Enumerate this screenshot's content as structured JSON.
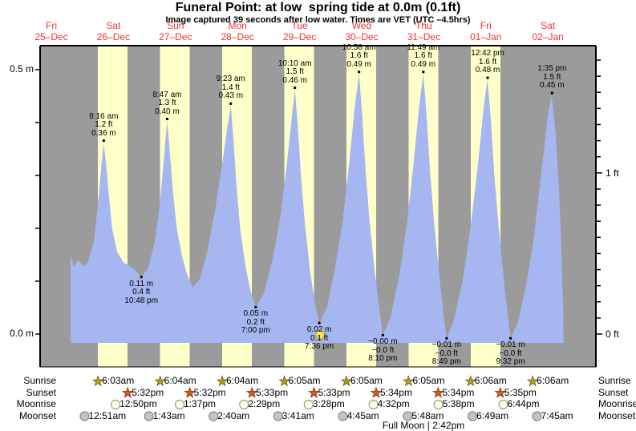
{
  "title": "Funeral Point: at low  spring tide at 0.0m (0.1ft)",
  "subtitle": "Image captured 39 seconds after low water. Times are VET (UTC –4.5hrs)",
  "footnote": "Full Moon | 2:42pm",
  "colors": {
    "day_band": "#ffffc9",
    "night_band": "#9b9b9b",
    "water": "#a5b6f1",
    "frame": "#000000",
    "day_label_red": "#f93030",
    "annotation_text": "#000000",
    "sunrise_star_fill": "#b09f25",
    "sunrise_star_stroke": "#776b10",
    "sunset_star_fill": "#d95e1f",
    "sunset_star_stroke": "#93330a",
    "moonrise_circle_fill": "#ffffd9",
    "moonrise_circle_stroke": "#9a9a9a",
    "moonset_circle_fill": "#c4c4bb",
    "moonset_circle_stroke": "#8a8a8a",
    "full_moon_marker_fill": "#f3e45c",
    "full_moon_marker_stroke": "#b0a020"
  },
  "chart_data": {
    "type": "area",
    "title": "Funeral Point: at low  spring tide at 0.0m (0.1ft)",
    "days": [
      {
        "weekday": "Fri",
        "date": "25–Dec"
      },
      {
        "weekday": "Sat",
        "date": "26–Dec"
      },
      {
        "weekday": "Sun",
        "date": "27–Dec"
      },
      {
        "weekday": "Mon",
        "date": "28–Dec"
      },
      {
        "weekday": "Tue",
        "date": "29–Dec"
      },
      {
        "weekday": "Wed",
        "date": "30–Dec"
      },
      {
        "weekday": "Thu",
        "date": "31–Dec"
      },
      {
        "weekday": "Fri",
        "date": "01–Jan"
      },
      {
        "weekday": "Sat",
        "date": "02–Jan"
      }
    ],
    "y_axis_left": {
      "unit": "m",
      "min": 0.0,
      "max": 0.5,
      "tick_step": 0.1,
      "labels": [
        {
          "value": 0.5,
          "text": "0.5 m"
        },
        {
          "value": 0.0,
          "text": "0.0 m"
        }
      ]
    },
    "y_axis_right": {
      "unit": "ft",
      "tick_step": 0.1,
      "tick_max": 1.7,
      "labels": [
        {
          "value": 1,
          "text": "1 ft"
        },
        {
          "value": 0,
          "text": "0 ft"
        }
      ]
    },
    "high_tides": [
      {
        "day": 1,
        "time": "8:16 am",
        "height_m": 0.362,
        "lines": [
          "8:16 am",
          "1.2 ft",
          "0.36 m"
        ]
      },
      {
        "day": 2,
        "time": "8:47 am",
        "height_m": 0.403,
        "lines": [
          "8:47 am",
          "1.3 ft",
          "0.40 m"
        ]
      },
      {
        "day": 3,
        "time": "9:23 am",
        "height_m": 0.432,
        "lines": [
          "9:23 am",
          "1.4 ft",
          "0.43 m"
        ]
      },
      {
        "day": 4,
        "time": "10:10 am",
        "height_m": 0.462,
        "lines": [
          "10:10 am",
          "1.5 ft",
          "0.46 m"
        ]
      },
      {
        "day": 5,
        "time": "10:58 am",
        "height_m": 0.492,
        "lines": [
          "10:58 am",
          "1.6 ft",
          "0.49 m"
        ]
      },
      {
        "day": 6,
        "time": "11:49 am",
        "height_m": 0.492,
        "lines": [
          "11:49 am",
          "1.6 ft",
          "0.49 m"
        ]
      },
      {
        "day": 7,
        "time": "12:42 pm",
        "height_m": 0.481,
        "lines": [
          "12:42 pm",
          "1.6 ft",
          "0.48 m"
        ]
      },
      {
        "day": 8,
        "time": "1:35 pm",
        "height_m": 0.452,
        "lines": [
          "1:35 pm",
          "1.5 ft",
          "0.45 m"
        ]
      }
    ],
    "low_tides": [
      {
        "day": 1,
        "time": "10:48 pm",
        "height_m": 0.108,
        "lines": [
          "0.11 m",
          "0.4 ft",
          "10:48 pm"
        ]
      },
      {
        "day": 3,
        "time": "7:00 pm",
        "height_m": 0.051,
        "lines": [
          "0.05 m",
          "0.2 ft",
          "7:00 pm"
        ]
      },
      {
        "day": 4,
        "time": "7:36 pm",
        "height_m": 0.021,
        "lines": [
          "0.02 m",
          "0.1 ft",
          "7:36 pm"
        ]
      },
      {
        "day": 5,
        "time": "8:10 pm",
        "height_m": -0.002,
        "lines": [
          "−0.00 m",
          "−0.0 ft",
          "8:10 pm"
        ]
      },
      {
        "day": 6,
        "time": "8:49 pm",
        "height_m": -0.008,
        "lines": [
          "−0.01 m",
          "−0.0 ft",
          "8:49 pm"
        ]
      },
      {
        "day": 7,
        "time": "9:32 pm",
        "height_m": -0.008,
        "lines": [
          "−0.01 m",
          "−0.0 ft",
          "9:32 pm"
        ]
      }
    ],
    "full_moon_marker": {
      "day": 4,
      "time": "7:54 pm",
      "height_m": -0.001
    },
    "curve": [
      [
        19.4,
        0.15
      ],
      [
        20.8,
        0.127
      ],
      [
        22.3,
        0.14
      ],
      [
        24.5,
        0.128
      ],
      [
        26.0,
        0.135
      ],
      [
        28.5,
        0.175
      ],
      [
        30.5,
        0.27
      ],
      [
        31.5,
        0.325
      ],
      [
        32.27,
        0.362
      ],
      [
        33.2,
        0.32
      ],
      [
        34.3,
        0.26
      ],
      [
        35.5,
        0.2
      ],
      [
        37.5,
        0.155
      ],
      [
        40.0,
        0.135
      ],
      [
        42.5,
        0.128
      ],
      [
        44.5,
        0.12
      ],
      [
        46.8,
        0.108
      ],
      [
        49.5,
        0.125
      ],
      [
        52.0,
        0.175
      ],
      [
        54.0,
        0.25
      ],
      [
        55.5,
        0.33
      ],
      [
        56.78,
        0.403
      ],
      [
        57.8,
        0.345
      ],
      [
        59.0,
        0.27
      ],
      [
        60.5,
        0.2
      ],
      [
        62.5,
        0.148
      ],
      [
        64.5,
        0.112
      ],
      [
        66.75,
        0.088
      ],
      [
        69.5,
        0.105
      ],
      [
        72.5,
        0.16
      ],
      [
        75.5,
        0.24
      ],
      [
        78.0,
        0.32
      ],
      [
        80.0,
        0.39
      ],
      [
        81.38,
        0.432
      ],
      [
        82.4,
        0.37
      ],
      [
        83.6,
        0.28
      ],
      [
        85.0,
        0.2
      ],
      [
        87.0,
        0.13
      ],
      [
        89.0,
        0.082
      ],
      [
        91.0,
        0.051
      ],
      [
        94.0,
        0.075
      ],
      [
        97.5,
        0.14
      ],
      [
        100.5,
        0.22
      ],
      [
        103.0,
        0.32
      ],
      [
        105.0,
        0.41
      ],
      [
        106.17,
        0.462
      ],
      [
        107.2,
        0.4
      ],
      [
        108.5,
        0.3
      ],
      [
        110.0,
        0.21
      ],
      [
        112.0,
        0.12
      ],
      [
        114.0,
        0.055
      ],
      [
        115.6,
        0.021
      ],
      [
        118.5,
        0.05
      ],
      [
        121.5,
        0.12
      ],
      [
        124.5,
        0.21
      ],
      [
        127.0,
        0.315
      ],
      [
        129.3,
        0.43
      ],
      [
        130.97,
        0.492
      ],
      [
        132.1,
        0.42
      ],
      [
        133.5,
        0.31
      ],
      [
        135.0,
        0.215
      ],
      [
        137.0,
        0.12
      ],
      [
        139.0,
        0.04
      ],
      [
        140.17,
        -0.002
      ],
      [
        143.0,
        0.03
      ],
      [
        146.5,
        0.11
      ],
      [
        149.5,
        0.21
      ],
      [
        152.0,
        0.32
      ],
      [
        154.3,
        0.435
      ],
      [
        155.82,
        0.492
      ],
      [
        157.0,
        0.42
      ],
      [
        158.4,
        0.31
      ],
      [
        160.0,
        0.21
      ],
      [
        162.0,
        0.11
      ],
      [
        163.8,
        0.03
      ],
      [
        164.82,
        -0.008
      ],
      [
        167.5,
        0.025
      ],
      [
        171.0,
        0.1
      ],
      [
        174.0,
        0.2
      ],
      [
        176.8,
        0.315
      ],
      [
        179.2,
        0.43
      ],
      [
        180.6,
        0.481
      ],
      [
        181.9,
        0.41
      ],
      [
        183.3,
        0.3
      ],
      [
        185.0,
        0.2
      ],
      [
        187.0,
        0.1
      ],
      [
        188.7,
        0.025
      ],
      [
        189.53,
        -0.008
      ],
      [
        192.3,
        0.02
      ],
      [
        195.5,
        0.09
      ],
      [
        198.5,
        0.18
      ],
      [
        201.3,
        0.3
      ],
      [
        204.0,
        0.415
      ],
      [
        205.4,
        0.452
      ],
      [
        207.0,
        0.38
      ],
      [
        208.3,
        0.27
      ],
      [
        209.3,
        0.15
      ],
      [
        210.0,
        0.02
      ]
    ]
  },
  "almanac": {
    "rows": [
      {
        "key": "sunrise",
        "label": "Sunrise",
        "entries": [
          {
            "day": 1,
            "time": "6:03am"
          },
          {
            "day": 2,
            "time": "6:04am"
          },
          {
            "day": 3,
            "time": "6:04am"
          },
          {
            "day": 4,
            "time": "6:05am"
          },
          {
            "day": 5,
            "time": "6:05am"
          },
          {
            "day": 6,
            "time": "6:05am"
          },
          {
            "day": 7,
            "time": "6:06am"
          },
          {
            "day": 8,
            "time": "6:06am"
          }
        ]
      },
      {
        "key": "sunset",
        "label": "Sunset",
        "entries": [
          {
            "day": 1,
            "time": "5:32pm"
          },
          {
            "day": 2,
            "time": "5:32pm"
          },
          {
            "day": 3,
            "time": "5:33pm"
          },
          {
            "day": 4,
            "time": "5:33pm"
          },
          {
            "day": 5,
            "time": "5:34pm"
          },
          {
            "day": 6,
            "time": "5:34pm"
          },
          {
            "day": 7,
            "time": "5:35pm"
          }
        ]
      },
      {
        "key": "moonrise",
        "label": "Moonrise",
        "entries": [
          {
            "day": 1,
            "time": "12:50pm"
          },
          {
            "day": 2,
            "time": "1:37pm"
          },
          {
            "day": 3,
            "time": "2:29pm"
          },
          {
            "day": 4,
            "time": "3:28pm"
          },
          {
            "day": 5,
            "time": "4:32pm"
          },
          {
            "day": 6,
            "time": "5:38pm"
          },
          {
            "day": 7,
            "time": "6:44pm"
          }
        ]
      },
      {
        "key": "moonset",
        "label": "Moonset",
        "entries": [
          {
            "day": 1,
            "time": "12:51am"
          },
          {
            "day": 2,
            "time": "1:43am"
          },
          {
            "day": 3,
            "time": "2:40am"
          },
          {
            "day": 4,
            "time": "3:41am"
          },
          {
            "day": 5,
            "time": "4:45am"
          },
          {
            "day": 6,
            "time": "5:48am"
          },
          {
            "day": 7,
            "time": "6:49am"
          },
          {
            "day": 8,
            "time": "7:45am"
          }
        ]
      }
    ]
  }
}
